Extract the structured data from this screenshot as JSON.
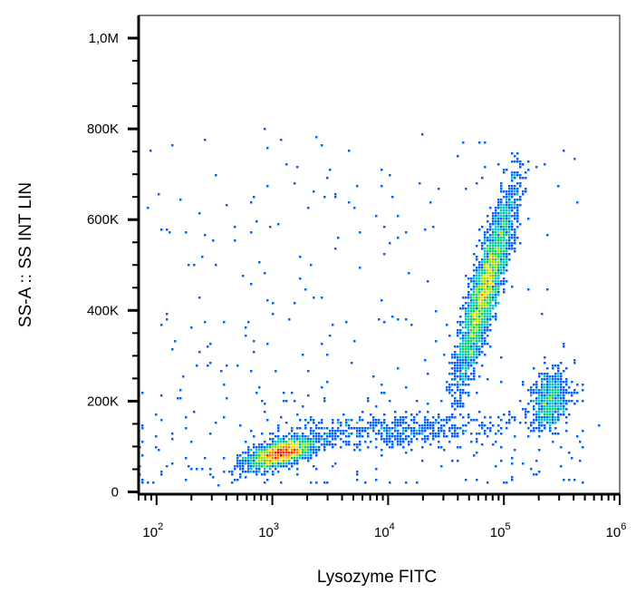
{
  "chart_data": {
    "type": "scatter",
    "title": "",
    "xlabel": "Lysozyme FITC",
    "ylabel": "SS-A :: SS INT LIN",
    "x_scale": "log",
    "xlim": [
      70,
      1000000
    ],
    "ylim": [
      -5000,
      1050000
    ],
    "x_ticks": [
      {
        "value": 100,
        "base": "10",
        "exp": "2"
      },
      {
        "value": 1000,
        "base": "10",
        "exp": "3"
      },
      {
        "value": 10000,
        "base": "10",
        "exp": "4"
      },
      {
        "value": 100000,
        "base": "10",
        "exp": "5"
      },
      {
        "value": 1000000,
        "base": "10",
        "exp": "6"
      }
    ],
    "y_ticks": [
      {
        "value": 0,
        "label": "0"
      },
      {
        "value": 200000,
        "label": "200K"
      },
      {
        "value": 400000,
        "label": "400K"
      },
      {
        "value": 600000,
        "label": "600K"
      },
      {
        "value": 800000,
        "label": "800K"
      },
      {
        "value": 1000000,
        "label": "1,0M"
      }
    ],
    "grid": false,
    "legend": "none",
    "colormap": [
      "#0000c8",
      "#0060ff",
      "#00c8c8",
      "#00d060",
      "#a0e000",
      "#ffe000",
      "#ff8000",
      "#ff2000",
      "#c00000"
    ],
    "populations": [
      {
        "center_x": 1200,
        "center_y": 85000,
        "spread_log_x": 0.14,
        "spread_y": 16000,
        "rho": 0.6,
        "weight": 2200
      },
      {
        "center_x": 70000,
        "center_y": 450000,
        "spread_log_x": 0.12,
        "spread_y": 100000,
        "rho": 0.88,
        "weight": 3400
      },
      {
        "center_x": 250000,
        "center_y": 200000,
        "spread_log_x": 0.08,
        "spread_y": 32000,
        "rho": 0.3,
        "weight": 650
      },
      {
        "center_x": 10000,
        "center_y": 135000,
        "spread_log_x": 0.5,
        "spread_y": 18000,
        "rho": 0.2,
        "weight": 520
      }
    ]
  }
}
